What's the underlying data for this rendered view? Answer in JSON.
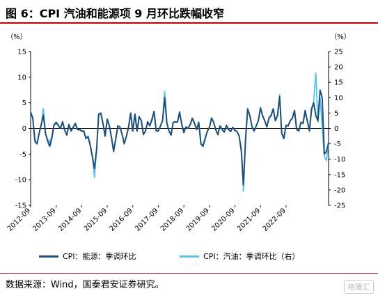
{
  "title": "图 6：CPI 汽油和能源项 9 月环比跌幅收窄",
  "source": "数据来源：Wind，国泰君安证券研究。",
  "watermark": "格隆汇",
  "chart_data": {
    "type": "line",
    "left_unit": "（%）",
    "right_unit": "（%）",
    "left_ylim": [
      -15,
      15
    ],
    "right_ylim": [
      -25,
      25
    ],
    "left_ticks": [
      15,
      10,
      5,
      0,
      -5,
      -10,
      -15
    ],
    "right_ticks": [
      25,
      20,
      15,
      10,
      5,
      0,
      -5,
      -10,
      -15,
      -20,
      -25
    ],
    "x_tick_labels": [
      "2012-09",
      "2013-09",
      "2014-09",
      "2015-09",
      "2016-09",
      "2017-09",
      "2018-09",
      "2019-09",
      "2020-09",
      "2021-09",
      "2022-09"
    ],
    "legend": {
      "energy": "CPI：能源：季调环比",
      "gasoline": "CPI：汽油：季调环比（右）"
    },
    "colors": {
      "energy": "#1f4e79",
      "gasoline": "#5bc0eb"
    },
    "series": [
      {
        "name": "CPI：能源：季调环比",
        "axis": "left",
        "start": "2012-09",
        "values": [
          3.2,
          2.0,
          -2.3,
          -3.0,
          -1.0,
          0.8,
          2.6,
          -1.0,
          -2.5,
          -3.5,
          -1.8,
          0.7,
          1.2,
          0.6,
          0.0,
          1.3,
          -0.3,
          -1.3,
          0.8,
          -0.5,
          0.2,
          1.0,
          -0.2,
          -0.2,
          -0.5,
          -0.5,
          -2.0,
          -1.6,
          -3.3,
          -5.5,
          -7.8,
          -4.0,
          2.8,
          3.0,
          1.0,
          -1.5,
          1.8,
          0.5,
          -1.8,
          -4.5,
          -2.0,
          0.5,
          0.2,
          -1.2,
          -3.0,
          -1.5,
          0.2,
          3.0,
          -0.5,
          2.8,
          -0.5,
          2.3,
          1.5,
          -1.2,
          -0.5,
          1.3,
          0.5,
          1.8,
          3.3,
          -0.5,
          -0.5,
          0.5,
          1.5,
          6.0,
          1.0,
          -0.5,
          -1.3,
          1.2,
          1.3,
          1.2,
          3.2,
          0.8,
          -0.8,
          0.3,
          0.0,
          0.8,
          2.0,
          1.0,
          -0.2,
          1.2,
          -3.0,
          -3.5,
          -2.0,
          -0.6,
          0.2,
          2.0,
          1.2,
          -0.3,
          -1.2,
          0.5,
          -0.2,
          -0.7,
          0.6,
          -0.2,
          -0.6,
          0.2,
          -0.4,
          -0.6,
          -1.5,
          -4.5,
          -11.0,
          -2.0,
          3.8,
          2.5,
          0.4,
          -0.5,
          0.5,
          1.5,
          4.0,
          2.5,
          1.5,
          0.3,
          2.0,
          2.5,
          3.8,
          1.5,
          2.5,
          6.2,
          -1.0,
          -2.0,
          0.6,
          0.5,
          1.5,
          2.0,
          3.5,
          -0.2,
          -0.5,
          1.2,
          1.0,
          3.5,
          1.5,
          -0.5,
          3.8,
          5.0,
          2.5,
          1.5,
          7.5,
          6.0,
          -5.0,
          -4.5,
          -2.8
        ]
      },
      {
        "name": "CPI：汽油：季调环比（右）",
        "axis": "right",
        "start": "2012-09",
        "values": [
          5.5,
          3.0,
          -4.5,
          -5.0,
          -1.5,
          1.0,
          6.5,
          -2.0,
          -3.5,
          -4.5,
          -2.5,
          1.0,
          1.5,
          1.0,
          0.0,
          1.8,
          -0.5,
          -2.0,
          1.0,
          -0.8,
          0.3,
          1.5,
          -0.5,
          -0.5,
          -1.0,
          -1.0,
          -3.0,
          -2.5,
          -5.0,
          -9.0,
          -16.0,
          -6.5,
          4.5,
          4.5,
          1.5,
          -2.5,
          3.0,
          1.0,
          -3.0,
          -7.0,
          -3.5,
          0.8,
          0.5,
          -2.0,
          -5.0,
          -2.5,
          0.5,
          5.0,
          -0.8,
          4.5,
          -0.8,
          3.5,
          2.5,
          -2.0,
          -0.8,
          2.0,
          0.8,
          2.5,
          5.0,
          -0.8,
          -0.8,
          0.8,
          2.5,
          12.0,
          2.0,
          -0.8,
          -2.0,
          2.0,
          2.0,
          2.0,
          5.0,
          1.5,
          -1.5,
          0.5,
          0.0,
          1.2,
          3.0,
          1.5,
          -0.5,
          2.0,
          -5.0,
          -5.5,
          -3.0,
          -1.0,
          0.3,
          3.5,
          2.0,
          -0.5,
          -2.0,
          0.8,
          -0.3,
          -1.2,
          1.0,
          -0.4,
          -1.0,
          0.3,
          -0.8,
          -1.0,
          -2.5,
          -7.0,
          -20.5,
          -3.0,
          6.5,
          4.0,
          0.6,
          -0.8,
          0.8,
          2.5,
          6.8,
          4.0,
          2.5,
          0.5,
          3.5,
          4.5,
          6.5,
          2.5,
          4.0,
          11.0,
          -1.5,
          -3.0,
          1.0,
          0.8,
          2.5,
          3.5,
          5.5,
          -0.3,
          -0.8,
          2.0,
          1.5,
          5.5,
          2.5,
          -0.8,
          5.5,
          9.0,
          18.0,
          2.0,
          10.0,
          0.5,
          -9.0,
          -10.5,
          -4.8
        ]
      }
    ]
  }
}
